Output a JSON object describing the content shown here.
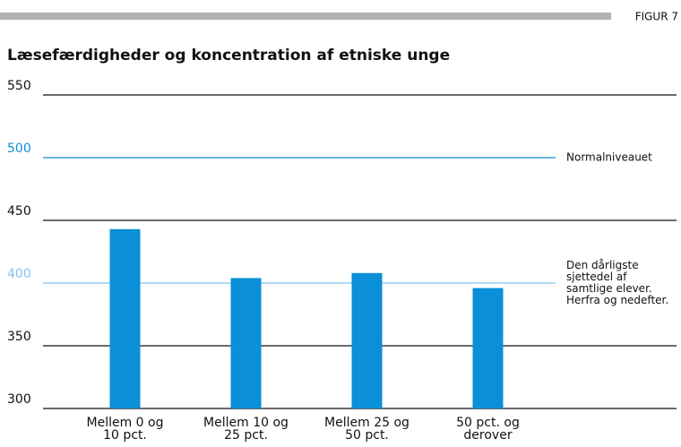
{
  "chart_data": {
    "type": "bar",
    "figure_label": "FIGUR 7",
    "title": "Læsefærdigheder og koncentration af etniske unge",
    "categories": [
      [
        "Mellem 0 og",
        "10 pct."
      ],
      [
        "Mellem 10 og",
        "25 pct."
      ],
      [
        "Mellem 25 og",
        "50 pct."
      ],
      [
        "50 pct. og",
        "derover"
      ]
    ],
    "values": [
      443,
      404,
      408,
      396
    ],
    "color": "#0a8fd8",
    "ylim": [
      300,
      550
    ],
    "yticks": [
      300,
      350,
      400,
      450,
      500,
      550
    ],
    "grid": true,
    "reference_lines": [
      {
        "value": 500,
        "label": [
          "Normalniveauet"
        ],
        "color": "#0a8fd8"
      },
      {
        "value": 400,
        "label": [
          "Den dårligste",
          "sjettedel af",
          "samtlige elever.",
          "Herfra og nedefter."
        ],
        "color": "#7fc4ec"
      }
    ]
  }
}
